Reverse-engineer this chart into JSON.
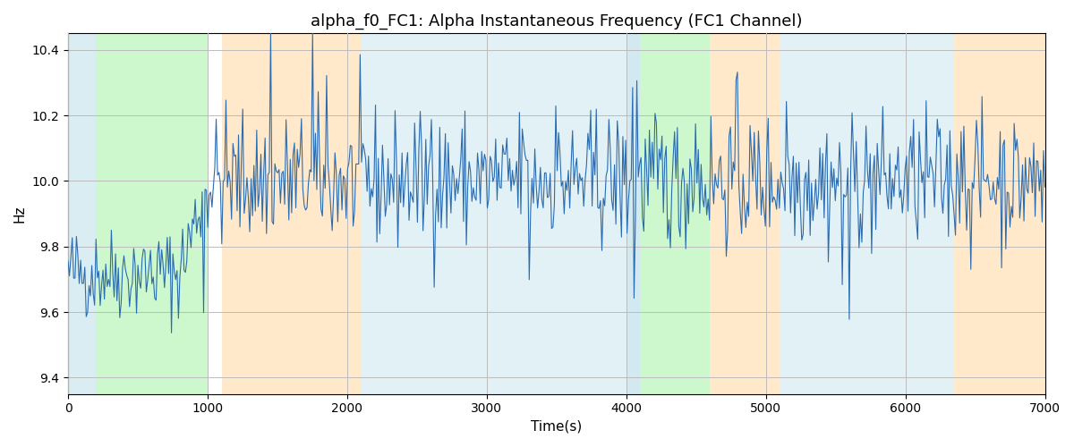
{
  "title": "alpha_f0_FC1: Alpha Instantaneous Frequency (FC1 Channel)",
  "xlabel": "Time(s)",
  "ylabel": "Hz",
  "xlim": [
    0,
    7000
  ],
  "ylim": [
    9.35,
    10.45
  ],
  "line_color": "#2b6cb0",
  "line_width": 0.8,
  "background_color": "#ffffff",
  "grid_color": "#bbbbbb",
  "bands": [
    {
      "xmin": 0,
      "xmax": 200,
      "color": "#add8e6",
      "alpha": 0.45
    },
    {
      "xmin": 200,
      "xmax": 1000,
      "color": "#90ee90",
      "alpha": 0.45
    },
    {
      "xmin": 1100,
      "xmax": 2100,
      "color": "#ffd8a0",
      "alpha": 0.55
    },
    {
      "xmin": 2100,
      "xmax": 4000,
      "color": "#add8e6",
      "alpha": 0.35
    },
    {
      "xmin": 4000,
      "xmax": 4100,
      "color": "#add8e6",
      "alpha": 0.55
    },
    {
      "xmin": 4100,
      "xmax": 4600,
      "color": "#90ee90",
      "alpha": 0.45
    },
    {
      "xmin": 4600,
      "xmax": 5100,
      "color": "#ffd8a0",
      "alpha": 0.55
    },
    {
      "xmin": 5100,
      "xmax": 6350,
      "color": "#add8e6",
      "alpha": 0.35
    },
    {
      "xmin": 6350,
      "xmax": 7100,
      "color": "#ffd8a0",
      "alpha": 0.55
    }
  ],
  "seed": 42,
  "n_points": 700,
  "title_fontsize": 13
}
